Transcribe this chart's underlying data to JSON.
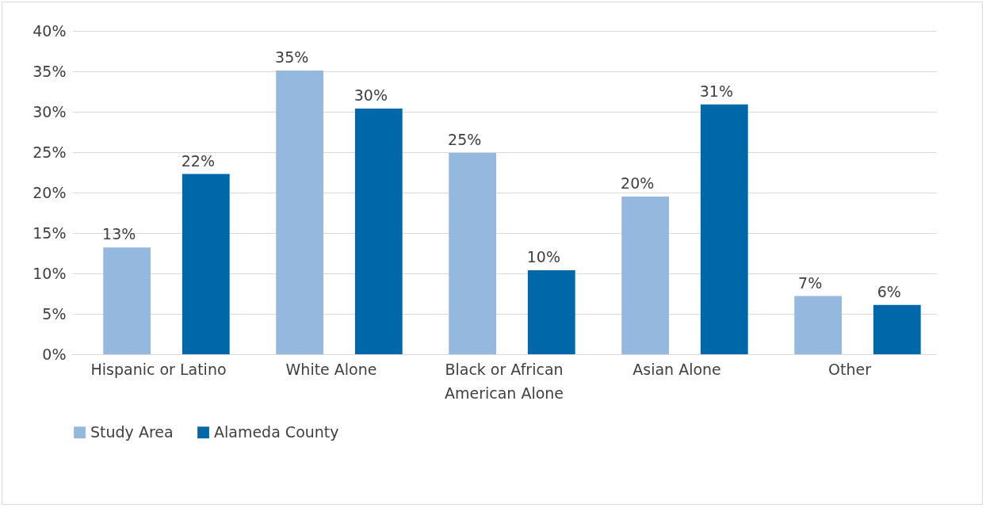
{
  "chart_data": {
    "type": "bar",
    "categories": [
      "Hispanic or Latino",
      "White Alone",
      "Black or African American Alone",
      "Asian Alone",
      "Other"
    ],
    "series": [
      {
        "name": "Study Area",
        "color": "#95b8df",
        "values": [
          13.2,
          35.1,
          24.9,
          19.5,
          7.2
        ],
        "value_labels": [
          "13%",
          "35%",
          "25%",
          "20%",
          "7%"
        ]
      },
      {
        "name": "Alameda County",
        "color": "#0068a9",
        "values": [
          22.3,
          30.4,
          10.4,
          30.9,
          6.1
        ],
        "value_labels": [
          "22%",
          "30%",
          "10%",
          "31%",
          "6%"
        ]
      }
    ],
    "ylim": [
      0,
      40
    ],
    "yticks": [
      {
        "value": 0,
        "label": "0%"
      },
      {
        "value": 5,
        "label": "5%"
      },
      {
        "value": 10,
        "label": "10%"
      },
      {
        "value": 15,
        "label": "15%"
      },
      {
        "value": 20,
        "label": "20%"
      },
      {
        "value": 25,
        "label": "25%"
      },
      {
        "value": 30,
        "label": "30%"
      },
      {
        "value": 35,
        "label": "35%"
      },
      {
        "value": 40,
        "label": "40%"
      }
    ],
    "grid": "y",
    "legend": "bottom"
  }
}
